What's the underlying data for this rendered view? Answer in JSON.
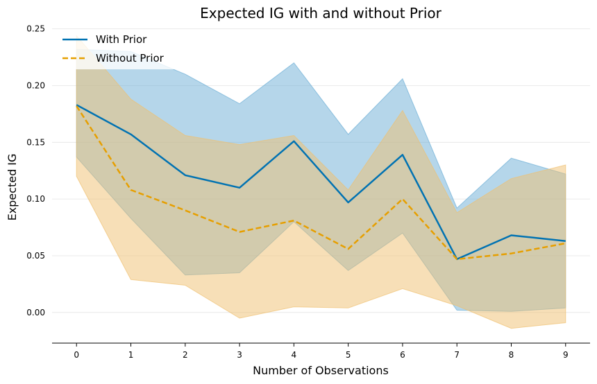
{
  "chart_data": {
    "type": "line",
    "title": "Expected IG with and without Prior",
    "xlabel": "Number of Observations",
    "ylabel": "Expected IG",
    "x": [
      0,
      1,
      2,
      3,
      4,
      5,
      6,
      7,
      8,
      9
    ],
    "xlim": [
      -0.45,
      9.45
    ],
    "ylim": [
      -0.027,
      0.251
    ],
    "yticks": [
      0.0,
      0.05,
      0.1,
      0.15,
      0.2,
      0.25
    ],
    "ytick_labels": [
      "0.00",
      "0.05",
      "0.10",
      "0.15",
      "0.20",
      "0.25"
    ],
    "xtick_labels": [
      "0",
      "1",
      "2",
      "3",
      "4",
      "5",
      "6",
      "7",
      "8",
      "9"
    ],
    "grid": "horizontal",
    "legend_position": "top-left",
    "series": [
      {
        "name": "With Prior",
        "color": "#0072b2",
        "band_color": "#6baed6",
        "line_style": "solid",
        "values": [
          0.183,
          0.157,
          0.121,
          0.11,
          0.151,
          0.097,
          0.139,
          0.047,
          0.068,
          0.063
        ],
        "lower": [
          0.137,
          0.083,
          0.033,
          0.035,
          0.08,
          0.037,
          0.07,
          0.002,
          0.001,
          0.004
        ],
        "upper": [
          0.232,
          0.23,
          0.21,
          0.184,
          0.22,
          0.157,
          0.206,
          0.092,
          0.136,
          0.122
        ]
      },
      {
        "name": "Without Prior",
        "color": "#e69f00",
        "band_color": "#f0c070",
        "line_style": "dashed",
        "values": [
          0.182,
          0.108,
          0.09,
          0.071,
          0.081,
          0.056,
          0.1,
          0.047,
          0.052,
          0.061
        ],
        "lower": [
          0.12,
          0.029,
          0.024,
          -0.005,
          0.005,
          0.004,
          0.021,
          0.006,
          -0.014,
          -0.009
        ],
        "upper": [
          0.244,
          0.188,
          0.156,
          0.148,
          0.156,
          0.108,
          0.178,
          0.088,
          0.118,
          0.13
        ]
      }
    ]
  }
}
